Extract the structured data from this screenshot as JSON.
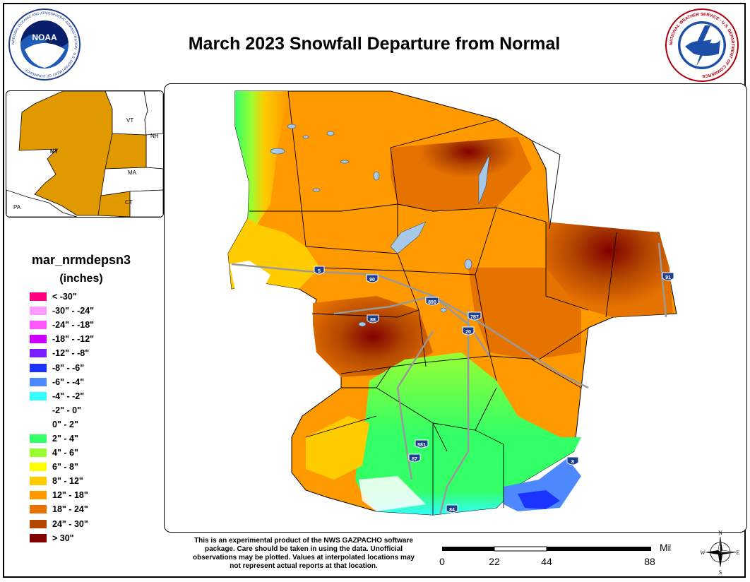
{
  "title": "March 2023 Snowfall Departure from Normal",
  "noaa_logo": {
    "inner_text": "NOAA",
    "ring_text": "NATIONAL OCEANIC AND ATMOSPHERIC ADMINISTRATION · U.S. DEPARTMENT OF COMMERCE"
  },
  "nws_logo": {
    "ring_text": "NATIONAL WEATHER SERVICE · U.S. DEPARTMENT OF COMMERCE"
  },
  "inset": {
    "labels": [
      "NY",
      "VT",
      "NH",
      "MA",
      "CT",
      "PA"
    ]
  },
  "legend": {
    "title": "mar_nrmdepsn3",
    "units": "(inches)",
    "items": [
      {
        "label": "< -30\"",
        "color": "#ff0080"
      },
      {
        "label": "-30\" - -24\"",
        "color": "#ff99ff"
      },
      {
        "label": "-24\" - -18\"",
        "color": "#ff55ff"
      },
      {
        "label": "-18\" - -12\"",
        "color": "#cc00ff"
      },
      {
        "label": "-12\" - -8\"",
        "color": "#7a1fff"
      },
      {
        "label": "-8\" - -6\"",
        "color": "#1a33ff"
      },
      {
        "label": "-6\" - -4\"",
        "color": "#4d88ff"
      },
      {
        "label": "-4\" - -2\"",
        "color": "#33ffff"
      },
      {
        "label": "-2\" - 0\"",
        "color": "#ffffff"
      },
      {
        "label": "0\" - 2\"",
        "color": "#ffffff"
      },
      {
        "label": "2\" - 4\"",
        "color": "#33ff66"
      },
      {
        "label": "4\" - 6\"",
        "color": "#99ff33"
      },
      {
        "label": "6\" - 8\"",
        "color": "#ffff00"
      },
      {
        "label": "8\" - 12\"",
        "color": "#ffcc00"
      },
      {
        "label": "12\" - 18\"",
        "color": "#ff9900"
      },
      {
        "label": "18\" - 24\"",
        "color": "#e67300"
      },
      {
        "label": "24\" - 30\"",
        "color": "#b34700"
      },
      {
        "label": "> 30\"",
        "color": "#800000"
      }
    ]
  },
  "highways": [
    "5",
    "90",
    "890",
    "787",
    "88",
    "20",
    "91",
    "581",
    "87",
    "8",
    "84"
  ],
  "disclaimer": "This is an experimental product of the NWS GAZPACHO software package. Care should be taken in using the data. Unofficial observations may be plotted. Values at interpolated locations may not represent actual reports at that location.",
  "scale": {
    "unit": "Miles",
    "ticks": [
      "0",
      "22",
      "44",
      "88"
    ]
  },
  "compass": {
    "n": "N",
    "s": "S",
    "e": "E",
    "w": "W"
  }
}
